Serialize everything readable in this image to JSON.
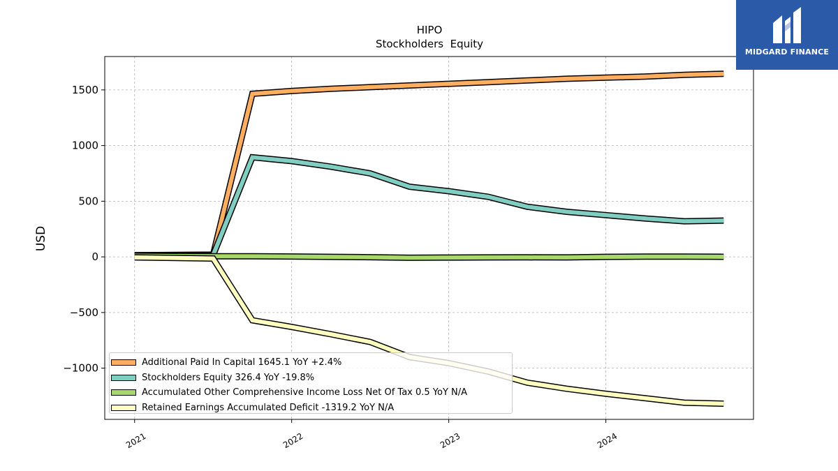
{
  "logo": {
    "text": "MIDGARD FINANCE",
    "color": "#2b5aa8"
  },
  "chart_data": {
    "type": "line",
    "title": "HIPO",
    "subtitle": "Stockholders  Equity",
    "ylabel": "USD",
    "xlabel": "",
    "ylim": [
      -1460,
      1800
    ],
    "xlim": [
      2020.81,
      2024.94
    ],
    "x_ticks": [
      2021,
      2022,
      2023,
      2024
    ],
    "y_ticks": [
      -1000,
      -500,
      0,
      500,
      1000,
      1500
    ],
    "y_tick_labels": [
      "−1000",
      "−500",
      "0",
      "500",
      "1000",
      "1500"
    ],
    "grid": true,
    "legend_position": "lower-left",
    "x": [
      2021.0,
      2021.5,
      2021.75,
      2022.0,
      2022.25,
      2022.5,
      2022.75,
      2023.0,
      2023.25,
      2023.5,
      2023.75,
      2024.0,
      2024.25,
      2024.5,
      2024.75
    ],
    "series": [
      {
        "name": "Additional Paid In Capital",
        "legend_label": "Additional Paid In Capital  1645.1 YoY +2.4%",
        "color": "#fdae61",
        "values": [
          15,
          20,
          1465,
          1490,
          1510,
          1525,
          1540,
          1555,
          1570,
          1585,
          1600,
          1610,
          1620,
          1635,
          1645
        ]
      },
      {
        "name": "Stockholders Equity",
        "legend_label": "Stockholders Equity  326.4 YoY -19.8%",
        "color": "#80cdc1",
        "values": [
          15,
          15,
          895,
          860,
          810,
          750,
          630,
          590,
          540,
          450,
          405,
          375,
          345,
          320,
          326
        ]
      },
      {
        "name": "Accumulated Other Comprehensive Income Loss Net Of Tax",
        "legend_label": "Accumulated Other Comprehensive Income Loss Net Of Tax  0.5 YoY N/A",
        "color": "#a6d96a",
        "values": [
          10,
          5,
          5,
          3,
          0,
          -3,
          -8,
          -6,
          -5,
          -4,
          -5,
          0,
          2,
          2,
          1
        ]
      },
      {
        "name": "Retained Earnings Accumulated Deficit",
        "legend_label": "Retained Earnings Accumulated Deficit  -1319.2 YoY N/A",
        "color": "#ffffbf",
        "values": [
          -5,
          -15,
          -570,
          -630,
          -695,
          -765,
          -900,
          -955,
          -1030,
          -1130,
          -1185,
          -1230,
          -1270,
          -1310,
          -1319
        ]
      }
    ]
  }
}
